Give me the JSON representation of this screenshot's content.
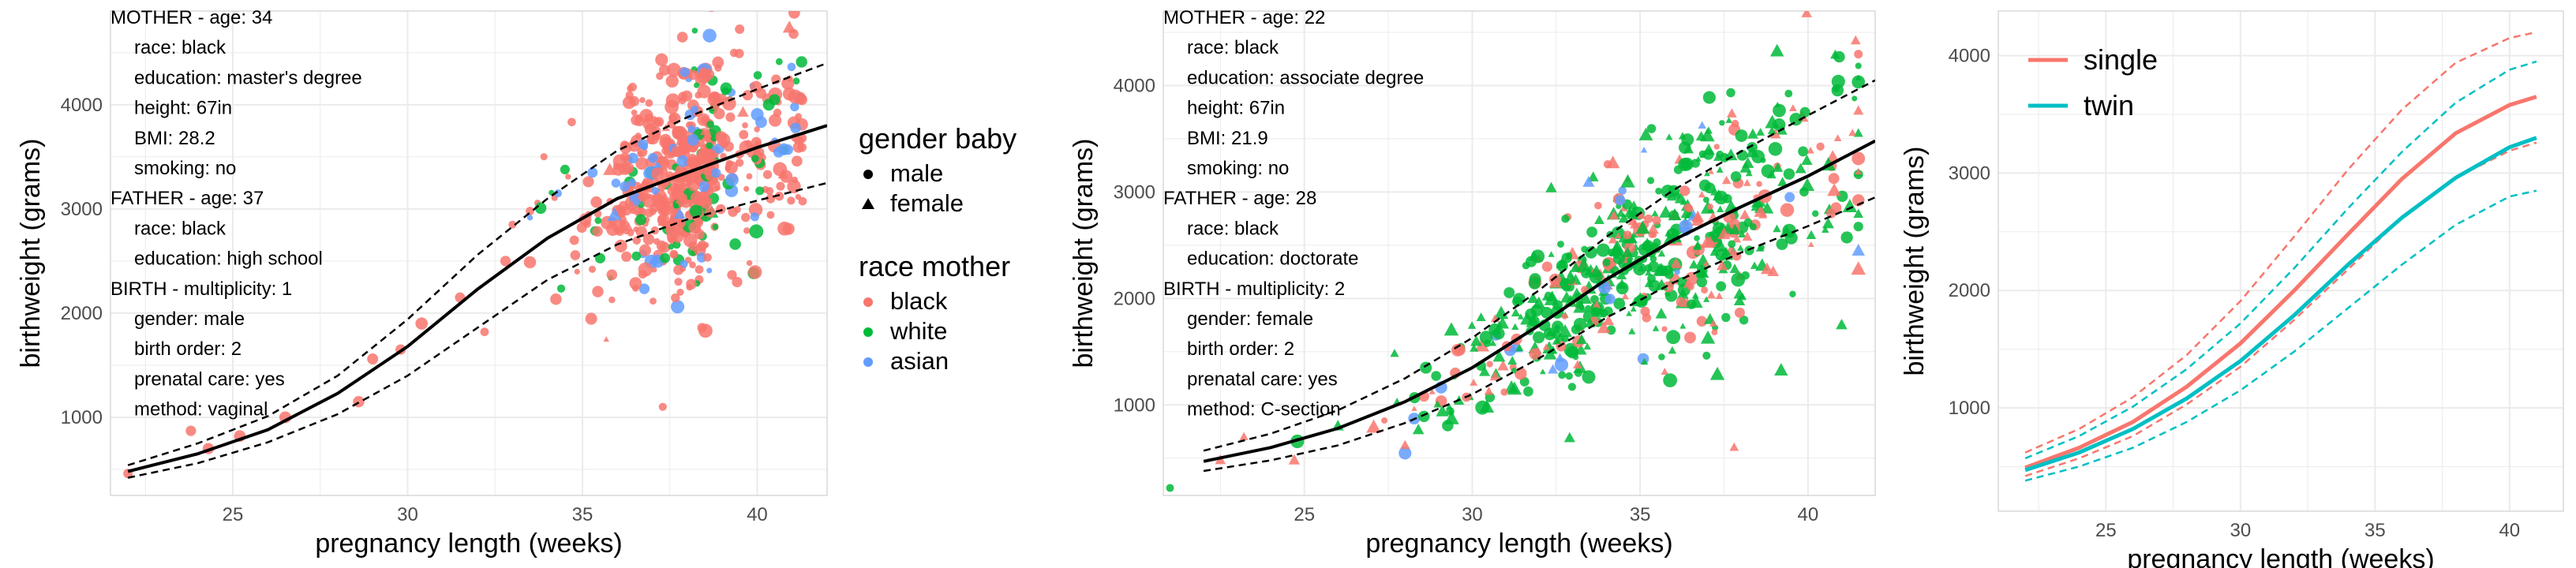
{
  "chart_data": [
    {
      "type": "scatter",
      "xlabel": "pregnancy length (weeks)",
      "ylabel": "birthweight (grams)",
      "xlim": [
        21.5,
        42
      ],
      "ylim": [
        250,
        4900
      ],
      "xticks": [
        25,
        30,
        35,
        40
      ],
      "yticks": [
        1000,
        2000,
        3000,
        4000
      ],
      "grid": true,
      "info_lines": [
        {
          "text": "MOTHER - age: 34",
          "indent": false
        },
        {
          "text": "race: black",
          "indent": true
        },
        {
          "text": "education: master's degree",
          "indent": true
        },
        {
          "text": "height: 67in",
          "indent": true
        },
        {
          "text": "BMI: 28.2",
          "indent": true
        },
        {
          "text": "smoking:  no",
          "indent": true
        },
        {
          "text": "FATHER - age: 37",
          "indent": false
        },
        {
          "text": "race: black",
          "indent": true
        },
        {
          "text": "education: high school",
          "indent": true
        },
        {
          "text": "BIRTH - multiplicity: 1",
          "indent": false
        },
        {
          "text": "gender:  male",
          "indent": true
        },
        {
          "text": "birth order: 2",
          "indent": true
        },
        {
          "text": "prenatal care:  yes",
          "indent": true
        },
        {
          "text": "method: vaginal",
          "indent": true
        }
      ],
      "mean_curve": {
        "x": [
          22,
          24,
          26,
          28,
          30,
          32,
          34,
          36,
          38,
          40,
          42
        ],
        "y": [
          480,
          650,
          880,
          1230,
          1680,
          2230,
          2720,
          3100,
          3350,
          3590,
          3800
        ]
      },
      "lower_curve": {
        "x": [
          22,
          24,
          26,
          28,
          30,
          32,
          34,
          36,
          38,
          40,
          42
        ],
        "y": [
          420,
          560,
          760,
          1030,
          1400,
          1860,
          2320,
          2660,
          2900,
          3080,
          3250
        ]
      },
      "upper_curve": {
        "x": [
          22,
          24,
          26,
          28,
          30,
          32,
          34,
          36,
          38,
          40,
          42
        ],
        "y": [
          540,
          750,
          1010,
          1400,
          1940,
          2560,
          3100,
          3560,
          3880,
          4150,
          4400
        ]
      },
      "point_cloud": {
        "composition": {
          "black": 0.8,
          "white": 0.1,
          "asian": 0.1
        },
        "female_share": 0.05,
        "count": 620,
        "x_range": [
          33.5,
          41.8
        ],
        "x_center": 38.8,
        "y_center_note": "follows mean curve",
        "seed": 7
      },
      "tail_points": [
        {
          "x": 22,
          "y": 460,
          "race": "black",
          "gender": "male"
        },
        {
          "x": 23.8,
          "y": 870,
          "race": "black",
          "gender": "male"
        },
        {
          "x": 24.3,
          "y": 700,
          "race": "black",
          "gender": "male"
        },
        {
          "x": 25.2,
          "y": 820,
          "race": "black",
          "gender": "male"
        },
        {
          "x": 26.5,
          "y": 1000,
          "race": "black",
          "gender": "male"
        },
        {
          "x": 28.6,
          "y": 1150,
          "race": "black",
          "gender": "male"
        },
        {
          "x": 29.0,
          "y": 1560,
          "race": "black",
          "gender": "male"
        },
        {
          "x": 29.8,
          "y": 1650,
          "race": "black",
          "gender": "male"
        },
        {
          "x": 30.4,
          "y": 1900,
          "race": "black",
          "gender": "male"
        },
        {
          "x": 31.5,
          "y": 2150,
          "race": "black",
          "gender": "male"
        },
        {
          "x": 32.2,
          "y": 1820,
          "race": "black",
          "gender": "male"
        },
        {
          "x": 32.8,
          "y": 2500,
          "race": "black",
          "gender": "male"
        },
        {
          "x": 33.0,
          "y": 2850,
          "race": "black",
          "gender": "male"
        },
        {
          "x": 34.3,
          "y": 3150,
          "race": "asian",
          "gender": "male"
        },
        {
          "x": 37.3,
          "y": 1100,
          "race": "black",
          "gender": "male"
        }
      ],
      "legends": [
        {
          "title": "gender baby",
          "items": [
            {
              "label": "male",
              "shape": "circle"
            },
            {
              "label": "female",
              "shape": "triangle"
            }
          ]
        },
        {
          "title": "race mother",
          "items": [
            {
              "label": "black",
              "color": "#F8766D"
            },
            {
              "label": "white",
              "color": "#00BA38"
            },
            {
              "label": "asian",
              "color": "#619CFF"
            }
          ]
        }
      ]
    },
    {
      "type": "scatter",
      "xlabel": "pregnancy length (weeks)",
      "ylabel": "birthweight (grams)",
      "xlim": [
        20.8,
        42
      ],
      "ylim": [
        150,
        4700
      ],
      "xticks": [
        25,
        30,
        35,
        40
      ],
      "yticks": [
        1000,
        2000,
        3000,
        4000
      ],
      "grid": true,
      "info_lines": [
        {
          "text": "MOTHER - age: 22",
          "indent": false
        },
        {
          "text": "race: black",
          "indent": true
        },
        {
          "text": "education: associate degree",
          "indent": true
        },
        {
          "text": "height: 67in",
          "indent": true
        },
        {
          "text": "BMI: 21.9",
          "indent": true
        },
        {
          "text": "smoking:  no",
          "indent": true
        },
        {
          "text": "FATHER - age: 28",
          "indent": false
        },
        {
          "text": "race: black",
          "indent": true
        },
        {
          "text": "education: doctorate",
          "indent": true
        },
        {
          "text": "BIRTH - multiplicity: 2",
          "indent": false
        },
        {
          "text": "gender:  female",
          "indent": true
        },
        {
          "text": "birth order: 2",
          "indent": true
        },
        {
          "text": "prenatal care:  yes",
          "indent": true
        },
        {
          "text": "method: C-section",
          "indent": true
        }
      ],
      "mean_curve": {
        "x": [
          22,
          24,
          26,
          28,
          30,
          32,
          34,
          36,
          38,
          40,
          42
        ],
        "y": [
          470,
          600,
          780,
          1030,
          1350,
          1750,
          2180,
          2550,
          2860,
          3150,
          3480
        ]
      },
      "lower_curve": {
        "x": [
          22,
          24,
          26,
          28,
          30,
          32,
          34,
          36,
          38,
          40,
          42
        ],
        "y": [
          380,
          480,
          620,
          830,
          1100,
          1440,
          1820,
          2150,
          2430,
          2680,
          2950
        ]
      },
      "upper_curve": {
        "x": [
          22,
          24,
          26,
          28,
          30,
          32,
          34,
          36,
          38,
          40,
          42
        ],
        "y": [
          570,
          730,
          950,
          1250,
          1630,
          2080,
          2580,
          3020,
          3380,
          3720,
          4050
        ]
      },
      "point_cloud": {
        "composition": {
          "black": 0.25,
          "white": 0.7,
          "asian": 0.05
        },
        "female_share": 0.5,
        "count": 650,
        "x_range": [
          22,
          41.5
        ],
        "x_center": 35.5,
        "y_center_note": "follows mean curve",
        "seed": 13
      },
      "tail_points": [
        {
          "x": 21,
          "y": 220,
          "race": "white",
          "gender": "male"
        },
        {
          "x": 22.5,
          "y": 480,
          "race": "black",
          "gender": "female"
        },
        {
          "x": 23.2,
          "y": 700,
          "race": "black",
          "gender": "female"
        },
        {
          "x": 24.7,
          "y": 480,
          "race": "black",
          "gender": "female"
        },
        {
          "x": 26.0,
          "y": 800,
          "race": "white",
          "gender": "female"
        },
        {
          "x": 28.0,
          "y": 620,
          "race": "black",
          "gender": "female"
        },
        {
          "x": 30.8,
          "y": 1450,
          "race": "white",
          "gender": "female"
        },
        {
          "x": 37.8,
          "y": 600,
          "race": "black",
          "gender": "female"
        },
        {
          "x": 41.0,
          "y": 1750,
          "race": "white",
          "gender": "female"
        },
        {
          "x": 40.6,
          "y": 2700,
          "race": "white",
          "gender": "female"
        }
      ],
      "legends": []
    },
    {
      "type": "line",
      "xlabel": "pregnancy length (weeks)",
      "ylabel": "birthweight (grams)",
      "xlim": [
        21,
        42
      ],
      "ylim": [
        120,
        4380
      ],
      "xticks": [
        25,
        30,
        35,
        40
      ],
      "yticks": [
        1000,
        2000,
        3000,
        4000
      ],
      "grid": true,
      "x": [
        22,
        24,
        26,
        28,
        30,
        32,
        34,
        36,
        38,
        40,
        41
      ],
      "series": [
        {
          "name": "single",
          "color": "#F8766D",
          "values": [
            490,
            660,
            880,
            1180,
            1550,
            2000,
            2480,
            2950,
            3340,
            3580,
            3650
          ],
          "lower": [
            420,
            570,
            760,
            1030,
            1350,
            1750,
            2180,
            2620,
            2960,
            3190,
            3260
          ],
          "upper": [
            620,
            820,
            1090,
            1450,
            1910,
            2460,
            3030,
            3540,
            3940,
            4150,
            4200
          ]
        },
        {
          "name": "twin",
          "color": "#00BFC4",
          "values": [
            470,
            620,
            820,
            1080,
            1400,
            1790,
            2220,
            2620,
            2960,
            3220,
            3300
          ],
          "lower": [
            380,
            500,
            660,
            880,
            1150,
            1480,
            1850,
            2220,
            2560,
            2800,
            2850
          ],
          "upper": [
            570,
            760,
            1010,
            1330,
            1720,
            2190,
            2700,
            3180,
            3600,
            3880,
            3950
          ]
        }
      ],
      "legend_placement": "top-left"
    }
  ]
}
